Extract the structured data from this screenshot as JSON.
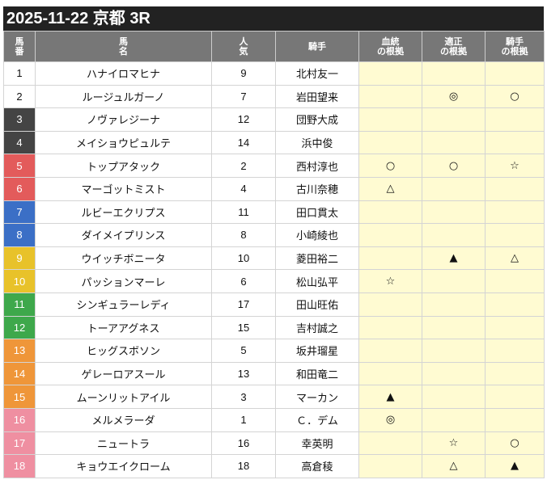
{
  "title": "2025-11-22 京都 3R",
  "headers": {
    "num": "馬\n番",
    "name": "馬\n名",
    "pop": "人\n気",
    "jockey": "騎手",
    "blood": "血統\nの根拠",
    "apt": "適正\nの根拠",
    "jock": "騎手\nの根拠"
  },
  "frame_colors": {
    "1": "#ffffff",
    "2": "#ffffff",
    "3": "#444444",
    "4": "#444444",
    "5": "#e35b5b",
    "6": "#e35b5b",
    "7": "#3b6fc6",
    "8": "#3b6fc6",
    "9": "#e8c22a",
    "10": "#e8c22a",
    "11": "#3ea84b",
    "12": "#3ea84b",
    "13": "#ef9639",
    "14": "#ef9639",
    "15": "#ef9639",
    "16": "#ef8fa1",
    "17": "#ef8fa1",
    "18": "#ef8fa1"
  },
  "rows": [
    {
      "num": "1",
      "name": "ハナイロマヒナ",
      "pop": "9",
      "jockey": "北村友一",
      "blood": "",
      "apt": "",
      "jock": ""
    },
    {
      "num": "2",
      "name": "ルージュルガーノ",
      "pop": "7",
      "jockey": "岩田望来",
      "blood": "",
      "apt": "◎",
      "jock": "○"
    },
    {
      "num": "3",
      "name": "ノヴァレジーナ",
      "pop": "12",
      "jockey": "団野大成",
      "blood": "",
      "apt": "",
      "jock": ""
    },
    {
      "num": "4",
      "name": "メイショウピュルテ",
      "pop": "14",
      "jockey": "浜中俊",
      "blood": "",
      "apt": "",
      "jock": ""
    },
    {
      "num": "5",
      "name": "トップアタック",
      "pop": "2",
      "jockey": "西村淳也",
      "blood": "○",
      "apt": "○",
      "jock": "☆"
    },
    {
      "num": "6",
      "name": "マーゴットミスト",
      "pop": "4",
      "jockey": "古川奈穂",
      "blood": "△",
      "apt": "",
      "jock": ""
    },
    {
      "num": "7",
      "name": "ルビーエクリプス",
      "pop": "11",
      "jockey": "田口貫太",
      "blood": "",
      "apt": "",
      "jock": ""
    },
    {
      "num": "8",
      "name": "ダイメイプリンス",
      "pop": "8",
      "jockey": "小崎綾也",
      "blood": "",
      "apt": "",
      "jock": ""
    },
    {
      "num": "9",
      "name": "ウイッチボニータ",
      "pop": "10",
      "jockey": "菱田裕二",
      "blood": "",
      "apt": "▲",
      "jock": "△"
    },
    {
      "num": "10",
      "name": "パッションマーレ",
      "pop": "6",
      "jockey": "松山弘平",
      "blood": "☆",
      "apt": "",
      "jock": ""
    },
    {
      "num": "11",
      "name": "シンギュラーレディ",
      "pop": "17",
      "jockey": "田山旺佑",
      "blood": "",
      "apt": "",
      "jock": ""
    },
    {
      "num": "12",
      "name": "トーアアグネス",
      "pop": "15",
      "jockey": "吉村誠之",
      "blood": "",
      "apt": "",
      "jock": ""
    },
    {
      "num": "13",
      "name": "ヒッグスボソン",
      "pop": "5",
      "jockey": "坂井瑠星",
      "blood": "",
      "apt": "",
      "jock": ""
    },
    {
      "num": "14",
      "name": "ゲレーロアスール",
      "pop": "13",
      "jockey": "和田竜二",
      "blood": "",
      "apt": "",
      "jock": ""
    },
    {
      "num": "15",
      "name": "ムーンリットアイル",
      "pop": "3",
      "jockey": "マーカン",
      "blood": "▲",
      "apt": "",
      "jock": ""
    },
    {
      "num": "16",
      "name": "メルメラーダ",
      "pop": "1",
      "jockey": "Ｃ．デム",
      "blood": "◎",
      "apt": "",
      "jock": ""
    },
    {
      "num": "17",
      "name": "ニュートラ",
      "pop": "16",
      "jockey": "幸英明",
      "blood": "",
      "apt": "☆",
      "jock": "○"
    },
    {
      "num": "18",
      "name": "キョウエイクローム",
      "pop": "18",
      "jockey": "高倉稜",
      "blood": "",
      "apt": "△",
      "jock": "▲"
    }
  ]
}
